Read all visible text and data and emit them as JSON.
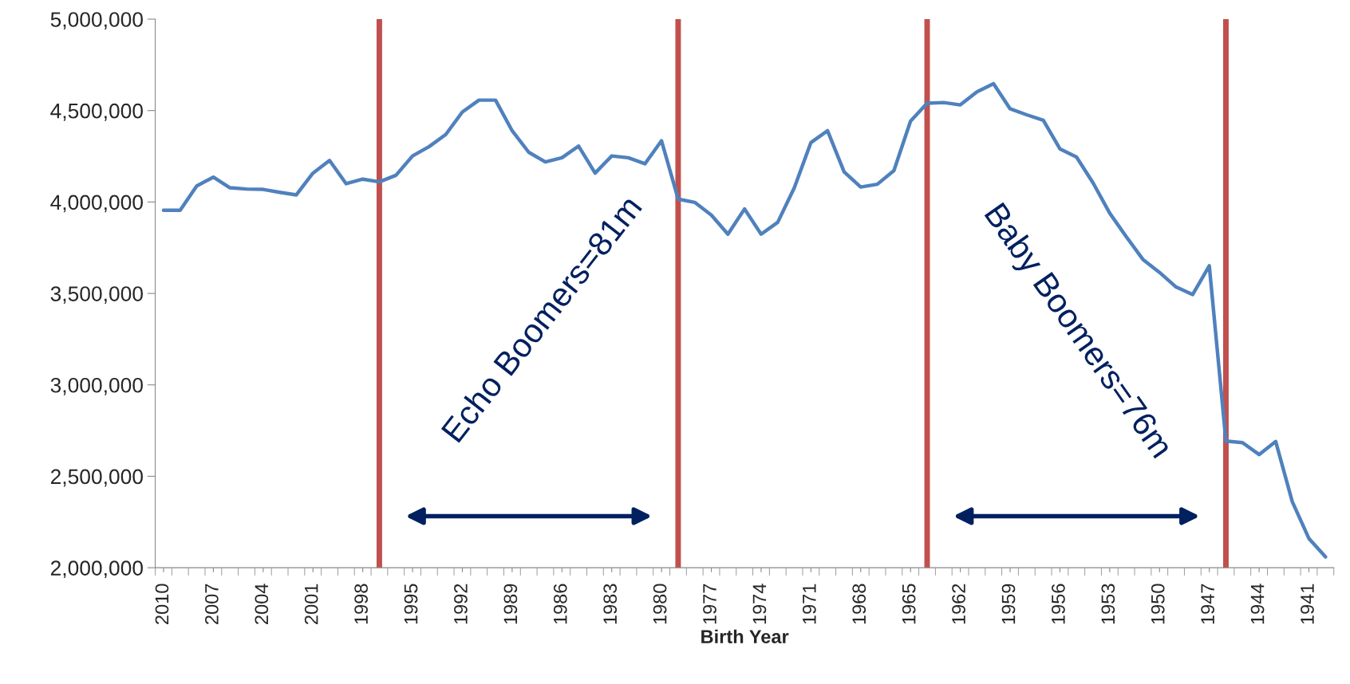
{
  "chart_data": {
    "type": "line",
    "xlabel": "Birth Year",
    "x": [
      2010,
      2009,
      2008,
      2007,
      2006,
      2005,
      2004,
      2003,
      2002,
      2001,
      2000,
      1999,
      1998,
      1997,
      1996,
      1995,
      1994,
      1993,
      1992,
      1991,
      1990,
      1989,
      1988,
      1987,
      1986,
      1985,
      1984,
      1983,
      1982,
      1981,
      1980,
      1979,
      1978,
      1977,
      1976,
      1975,
      1974,
      1973,
      1972,
      1971,
      1970,
      1969,
      1968,
      1967,
      1966,
      1965,
      1964,
      1963,
      1962,
      1961,
      1960,
      1959,
      1958,
      1957,
      1956,
      1955,
      1954,
      1953,
      1952,
      1951,
      1950,
      1949,
      1948,
      1947,
      1946,
      1945,
      1944,
      1943,
      1942,
      1941,
      1940
    ],
    "series": [
      {
        "color": "#4f81bd",
        "values": [
          3955000,
          3955000,
          4088000,
          4136000,
          4078000,
          4071000,
          4069000,
          4053000,
          4039000,
          4158000,
          4227000,
          4100000,
          4125000,
          4110000,
          4146000,
          4252000,
          4303000,
          4369000,
          4492000,
          4557000,
          4557000,
          4390000,
          4272000,
          4219000,
          4242000,
          4306000,
          4158000,
          4252000,
          4242000,
          4209000,
          4335000,
          4016000,
          3998000,
          3929000,
          3824000,
          3962000,
          3824000,
          3889000,
          4078000,
          4325000,
          4390000,
          4165000,
          4082000,
          4097000,
          4172000,
          4442000,
          4540000,
          4544000,
          4531000,
          4602000,
          4647000,
          4510000,
          4477000,
          4447000,
          4291000,
          4246000,
          4104000,
          3939000,
          3810000,
          3686000,
          3615000,
          3535000,
          3494000,
          3651000,
          2693000,
          2684000,
          2619000,
          2690000,
          2361000,
          2160000,
          2059000
        ]
      }
    ],
    "xlim": [
      2010.5,
      1939.5
    ],
    "xticks": [
      2010,
      2007,
      2004,
      2001,
      1998,
      1995,
      1992,
      1989,
      1986,
      1983,
      1980,
      1977,
      1974,
      1971,
      1968,
      1965,
      1962,
      1959,
      1956,
      1953,
      1950,
      1947,
      1944,
      1941
    ],
    "ylim": [
      2000000,
      5000000
    ],
    "yticks": [
      {
        "value": 2000000,
        "label": "2,000,000"
      },
      {
        "value": 2500000,
        "label": "2,500,000"
      },
      {
        "value": 3000000,
        "label": "3,000,000"
      },
      {
        "value": 3500000,
        "label": "3,500,000"
      },
      {
        "value": 4000000,
        "label": "4,000,000"
      },
      {
        "value": 4500000,
        "label": "4,500,000"
      },
      {
        "value": 5000000,
        "label": "5,000,000"
      }
    ],
    "ref_lines": [
      {
        "axis": "x",
        "value": 1997,
        "color": "#c0504d"
      },
      {
        "axis": "x",
        "value": 1979,
        "color": "#c0504d"
      },
      {
        "axis": "x",
        "value": 1964,
        "color": "#c0504d"
      },
      {
        "axis": "x",
        "value": 1946,
        "color": "#c0504d"
      }
    ],
    "annotations": [
      "Echo Boomers=81m",
      "Baby Boomers=76m"
    ],
    "grid": false,
    "legend": false,
    "marker": "none",
    "line_style": "solid"
  }
}
